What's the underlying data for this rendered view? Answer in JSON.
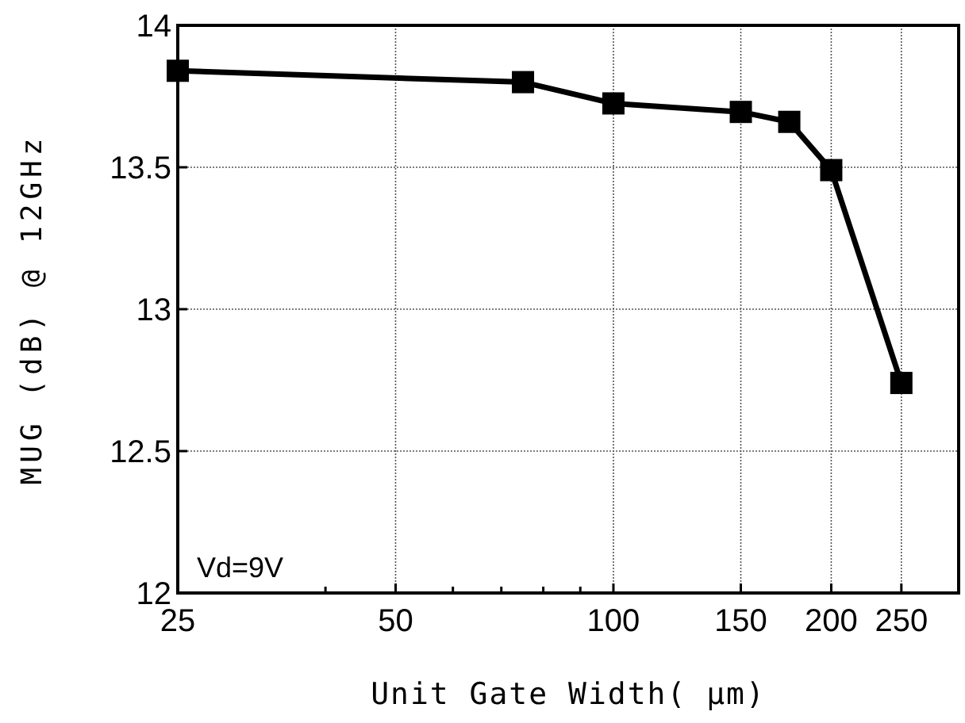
{
  "chart_data": {
    "type": "line",
    "xlabel": "Unit Gate Width( μm)",
    "ylabel": "MUG (dB) @ 12GHz",
    "log": "x",
    "x": [
      25,
      75,
      100,
      150,
      175,
      200,
      250
    ],
    "series": [
      {
        "color": "#000000",
        "values": [
          13.84,
          13.8,
          13.725,
          13.695,
          13.66,
          13.49,
          12.74
        ]
      }
    ],
    "xlim": [
      25,
      300
    ],
    "xticks": [
      25,
      {
        "value": 40,
        "label": null
      },
      50,
      {
        "value": 60,
        "label": null
      },
      {
        "value": 70,
        "label": null
      },
      {
        "value": 80,
        "label": null
      },
      {
        "value": 90,
        "label": null
      },
      100,
      150,
      200,
      250
    ],
    "ylim": [
      12,
      14
    ],
    "yticks": [
      12,
      12.5,
      13,
      13.5,
      14
    ],
    "grid": true,
    "marker": "square",
    "line_style": "solid",
    "annotations": [
      "Vd=9V"
    ]
  }
}
